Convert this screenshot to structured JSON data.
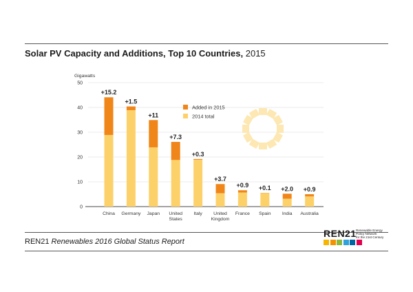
{
  "header": {
    "title_main": "Solar PV Capacity and Additions, Top 10 Countries,",
    "title_year": "2015"
  },
  "footer": {
    "org": "REN21",
    "report": "Renewables 2016 Global Status Report"
  },
  "logo": {
    "brand": "REN21",
    "tagline_1": "Renewable Energy",
    "tagline_2": "Policy Network",
    "tagline_3": "for the 21st Century",
    "tile_colors": [
      "#f7b500",
      "#f39200",
      "#8cb83c",
      "#2ea3dc",
      "#0066a4",
      "#e5004f"
    ]
  },
  "chart_data": {
    "type": "bar",
    "stacked": true,
    "ylabel": "Gigawatts",
    "ylim": [
      0,
      50
    ],
    "yticks": [
      0,
      10,
      20,
      30,
      40,
      50
    ],
    "grid": true,
    "legend_position": "top-center",
    "categories": [
      [
        "China"
      ],
      [
        "Germany"
      ],
      [
        "Japan"
      ],
      [
        "United",
        "States"
      ],
      [
        "Italy"
      ],
      [
        "United",
        "Kingdom"
      ],
      [
        "France"
      ],
      [
        "Spain"
      ],
      [
        "India"
      ],
      [
        "Australia"
      ]
    ],
    "series": [
      {
        "name": "2014 total",
        "color": "#fdd16a",
        "values": [
          28.9,
          38.9,
          23.9,
          18.8,
          18.9,
          5.4,
          5.7,
          5.4,
          3.2,
          4.1
        ]
      },
      {
        "name": "Added in 2015",
        "color": "#f08519",
        "values": [
          15.2,
          1.5,
          11,
          7.3,
          0.3,
          3.7,
          0.9,
          0.1,
          2.0,
          0.9
        ]
      }
    ],
    "data_labels": [
      "+15.2",
      "+1.5",
      "+11",
      "+7.3",
      "+0.3",
      "+3.7",
      "+0.9",
      "+0.1",
      "+2.0",
      "+0.9"
    ]
  }
}
